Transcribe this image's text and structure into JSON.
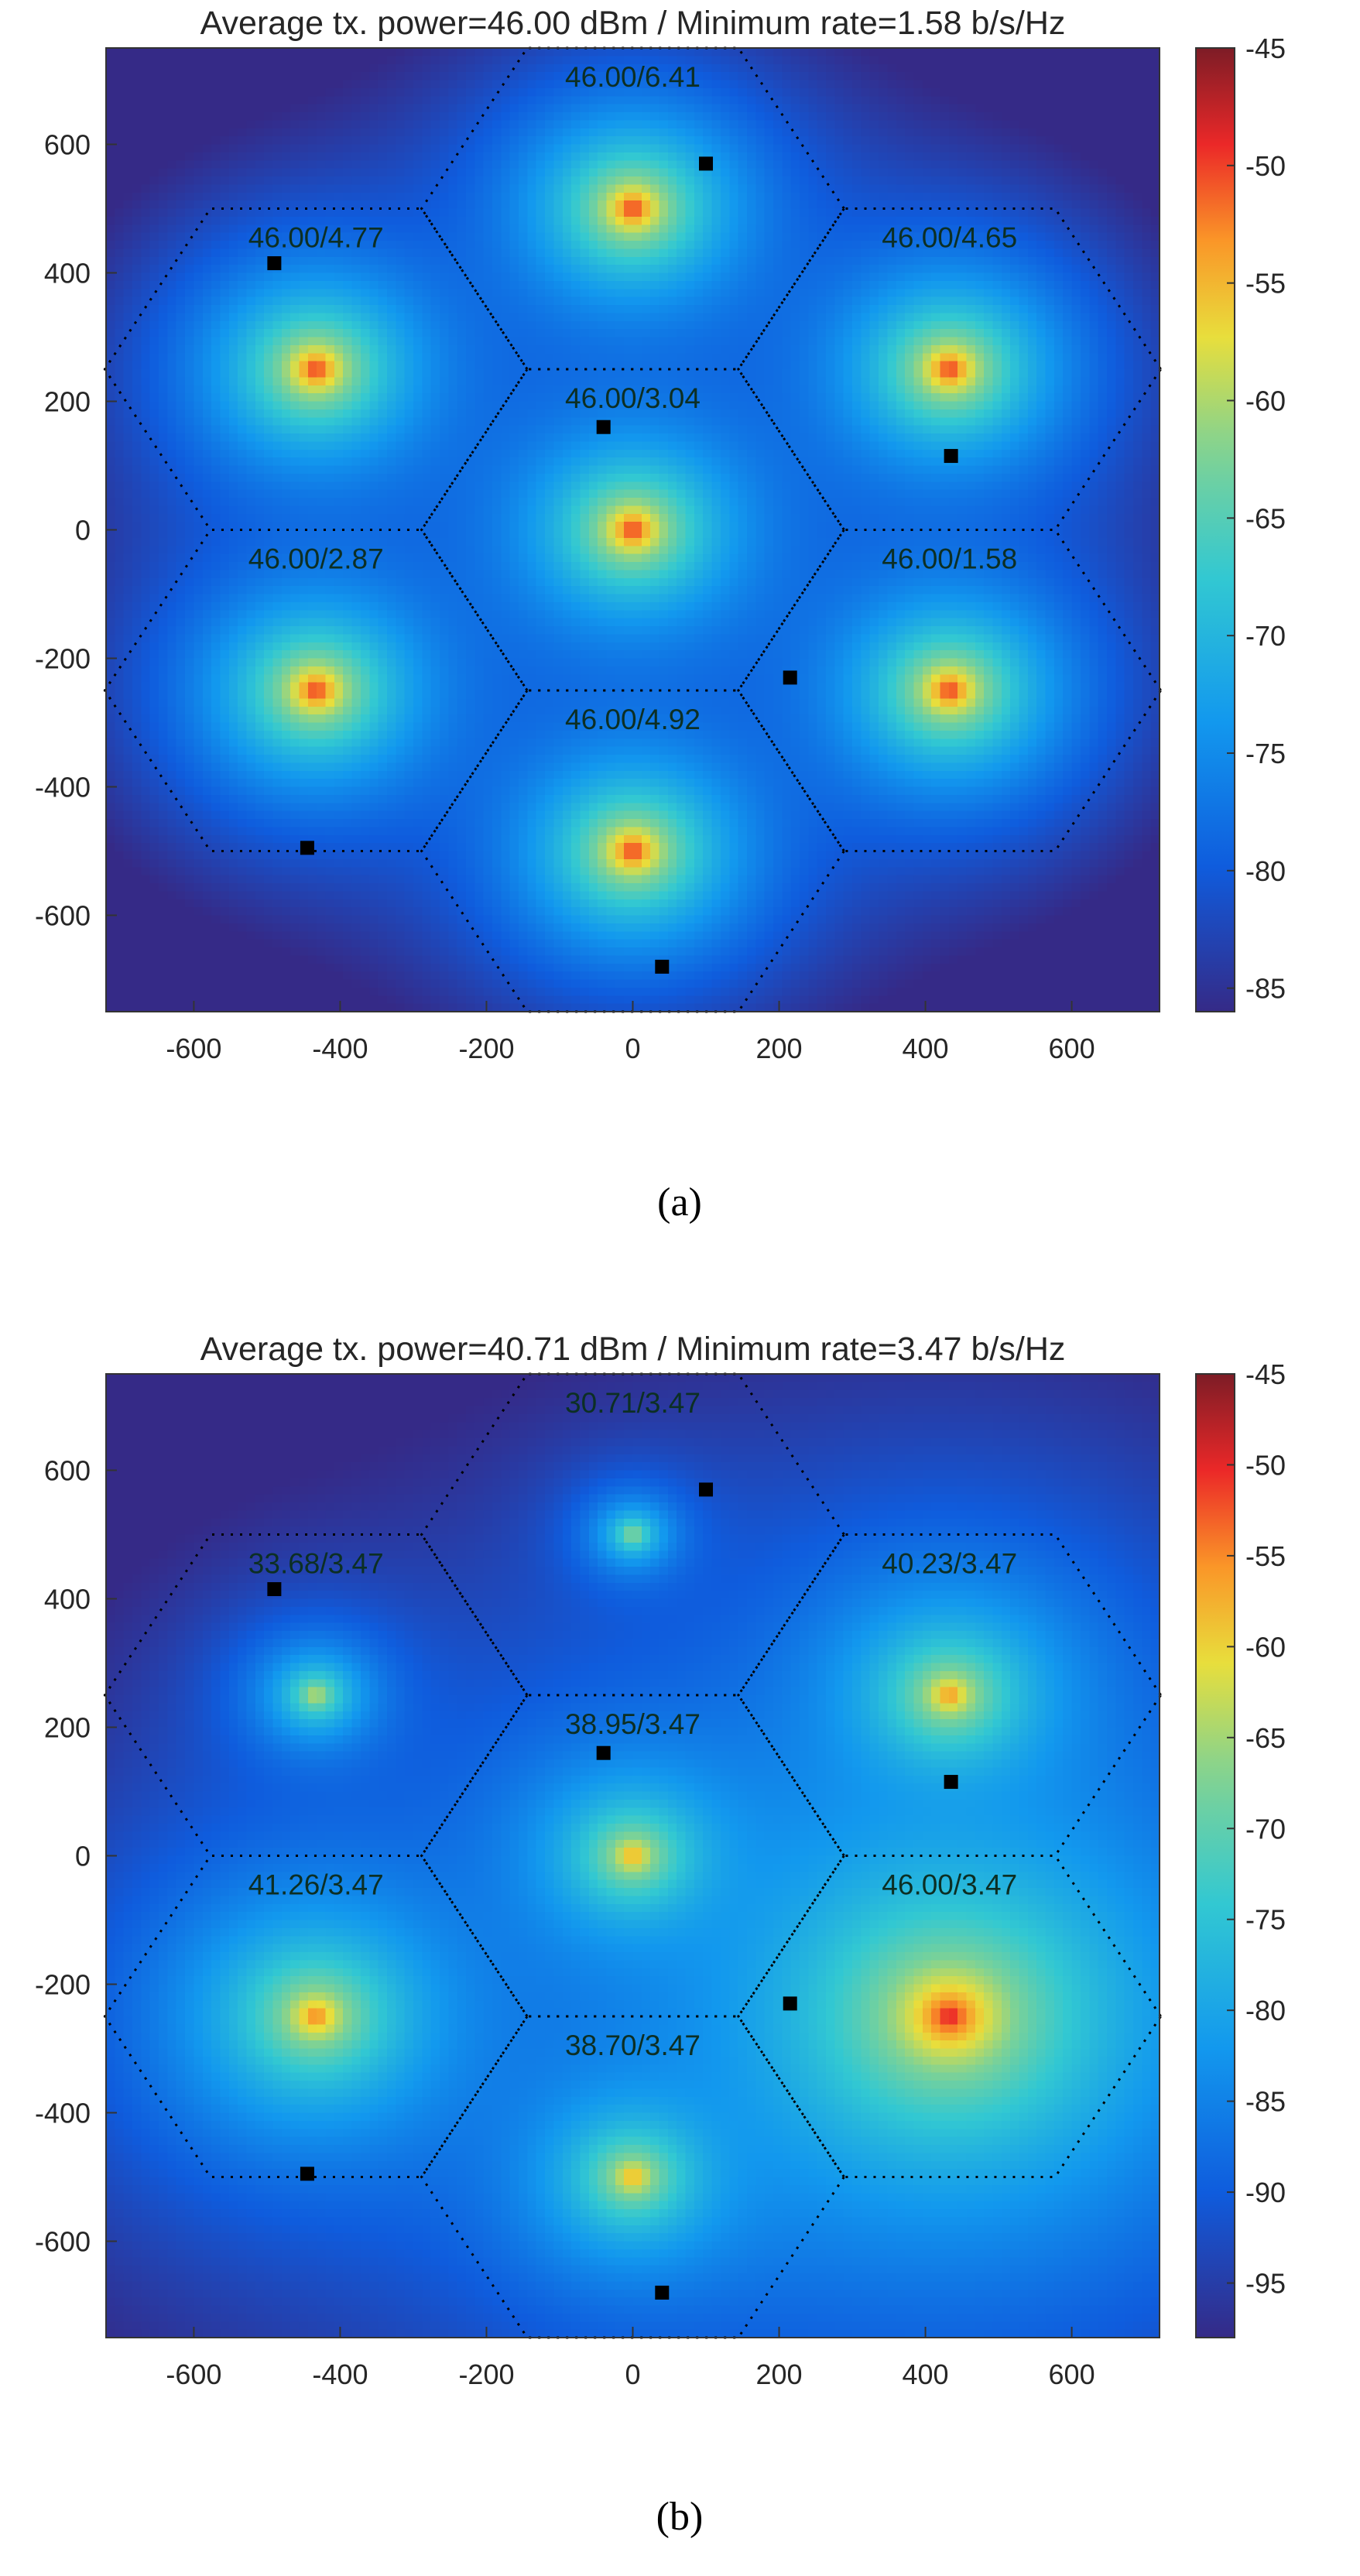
{
  "chart_data": [
    {
      "type": "heatmap",
      "panel": "(a)",
      "title": "Average tx. power=46.00 dBm / Minimum rate=1.58 b/s/Hz",
      "caption": "(a)",
      "xlim": [
        -720,
        720
      ],
      "ylim": [
        -750,
        750
      ],
      "xticks": [
        -600,
        -400,
        -200,
        0,
        200,
        400,
        600
      ],
      "yticks": [
        600,
        400,
        200,
        0,
        -200,
        -400,
        -600
      ],
      "colorbar": {
        "min": -86,
        "max": -45,
        "ticks": [
          -45,
          -50,
          -55,
          -60,
          -65,
          -70,
          -75,
          -80,
          -85
        ]
      },
      "cells": [
        {
          "x": 0,
          "y": 500,
          "power": 46.0,
          "label": "46.00/6.41",
          "user": [
            100,
            570
          ],
          "spread": 1.0
        },
        {
          "x": -433,
          "y": 250,
          "power": 46.0,
          "label": "46.00/4.77",
          "user": [
            -490,
            415
          ],
          "spread": 1.0
        },
        {
          "x": 433,
          "y": 250,
          "power": 46.0,
          "label": "46.00/4.65",
          "user": [
            435,
            115
          ],
          "spread": 1.0
        },
        {
          "x": 0,
          "y": 0,
          "power": 46.0,
          "label": "46.00/3.04",
          "user": [
            -40,
            160
          ],
          "spread": 1.0
        },
        {
          "x": -433,
          "y": -250,
          "power": 46.0,
          "label": "46.00/2.87",
          "user": [
            -445,
            -495
          ],
          "spread": 1.0
        },
        {
          "x": 433,
          "y": -250,
          "power": 46.0,
          "label": "46.00/1.58",
          "user": [
            215,
            -230
          ],
          "spread": 1.0
        },
        {
          "x": 0,
          "y": -500,
          "power": 46.0,
          "label": "46.00/4.92",
          "user": [
            40,
            -680
          ],
          "spread": 1.0
        }
      ]
    },
    {
      "type": "heatmap",
      "panel": "(b)",
      "title": "Average tx. power=40.71 dBm / Minimum rate=3.47 b/s/Hz",
      "caption": "(b)",
      "xlim": [
        -720,
        720
      ],
      "ylim": [
        -750,
        750
      ],
      "xticks": [
        -600,
        -400,
        -200,
        0,
        200,
        400,
        600
      ],
      "yticks": [
        600,
        400,
        200,
        0,
        -200,
        -400,
        -600
      ],
      "colorbar": {
        "min": -98,
        "max": -45,
        "ticks": [
          -45,
          -50,
          -55,
          -60,
          -65,
          -70,
          -75,
          -80,
          -85,
          -90,
          -95
        ]
      },
      "cells": [
        {
          "x": 0,
          "y": 500,
          "power": 30.71,
          "label": "30.71/3.47",
          "user": [
            100,
            570
          ],
          "spread": 0.55
        },
        {
          "x": -433,
          "y": 250,
          "power": 33.68,
          "label": "33.68/3.47",
          "user": [
            -490,
            415
          ],
          "spread": 0.62
        },
        {
          "x": 433,
          "y": 250,
          "power": 40.23,
          "label": "40.23/3.47",
          "user": [
            435,
            115
          ],
          "spread": 0.85
        },
        {
          "x": 0,
          "y": 0,
          "power": 38.95,
          "label": "38.95/3.47",
          "user": [
            -40,
            160
          ],
          "spread": 0.8
        },
        {
          "x": -433,
          "y": -250,
          "power": 41.26,
          "label": "41.26/3.47",
          "user": [
            -445,
            -495
          ],
          "spread": 0.9
        },
        {
          "x": 433,
          "y": -250,
          "power": 46.0,
          "label": "46.00/3.47",
          "user": [
            215,
            -230
          ],
          "spread": 1.15
        },
        {
          "x": 0,
          "y": -500,
          "power": 38.7,
          "label": "38.70/3.47",
          "user": [
            40,
            -680
          ],
          "spread": 0.8
        }
      ]
    }
  ]
}
